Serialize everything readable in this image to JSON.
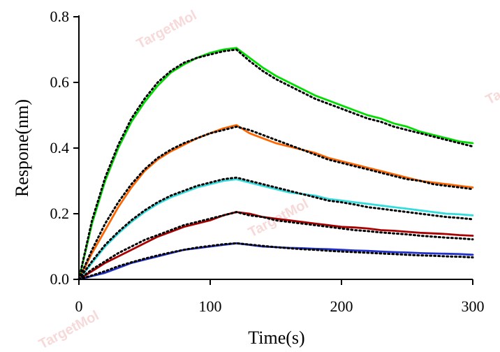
{
  "chart_data": {
    "type": "line",
    "title": "",
    "xlabel": "Time(s)",
    "ylabel": "Respone(nm)",
    "xlim": [
      0,
      300
    ],
    "ylim": [
      0,
      0.8
    ],
    "x_ticks": [
      0,
      100,
      200,
      300
    ],
    "x_tick_labels": [
      "0",
      "100",
      "200",
      "300"
    ],
    "y_ticks": [
      0,
      0.2,
      0.4,
      0.6,
      0.8
    ],
    "y_tick_labels": [
      "0.0",
      "0.2",
      "0.4",
      "0.6",
      "0.8"
    ],
    "grid": false,
    "legend": "none",
    "series": [
      {
        "color": "#00dd00",
        "x": [
          0,
          10,
          20,
          30,
          40,
          50,
          60,
          70,
          80,
          90,
          100,
          110,
          120,
          130,
          140,
          150,
          160,
          170,
          180,
          190,
          200,
          210,
          220,
          230,
          240,
          250,
          260,
          270,
          280,
          290,
          300
        ],
        "y": [
          0.0,
          0.17,
          0.3,
          0.4,
          0.48,
          0.54,
          0.59,
          0.63,
          0.655,
          0.675,
          0.69,
          0.7,
          0.705,
          0.675,
          0.645,
          0.62,
          0.6,
          0.58,
          0.56,
          0.545,
          0.53,
          0.515,
          0.5,
          0.49,
          0.475,
          0.465,
          0.45,
          0.44,
          0.43,
          0.42,
          0.415
        ]
      },
      {
        "color": "#ff6600",
        "x": [
          0,
          10,
          20,
          30,
          40,
          50,
          60,
          70,
          80,
          90,
          100,
          110,
          120,
          130,
          140,
          150,
          160,
          170,
          180,
          190,
          200,
          210,
          220,
          230,
          240,
          250,
          260,
          270,
          280,
          290,
          300
        ],
        "y": [
          0.0,
          0.08,
          0.15,
          0.22,
          0.28,
          0.33,
          0.365,
          0.39,
          0.41,
          0.43,
          0.445,
          0.46,
          0.47,
          0.445,
          0.43,
          0.415,
          0.405,
          0.395,
          0.385,
          0.37,
          0.36,
          0.35,
          0.34,
          0.33,
          0.32,
          0.31,
          0.3,
          0.295,
          0.29,
          0.285,
          0.28
        ]
      },
      {
        "color": "#33dddd",
        "x": [
          0,
          10,
          20,
          30,
          40,
          50,
          60,
          70,
          80,
          90,
          100,
          110,
          120,
          130,
          140,
          150,
          160,
          170,
          180,
          190,
          200,
          210,
          220,
          230,
          240,
          250,
          260,
          270,
          280,
          290,
          300
        ],
        "y": [
          0.0,
          0.05,
          0.1,
          0.14,
          0.175,
          0.205,
          0.23,
          0.25,
          0.265,
          0.28,
          0.29,
          0.3,
          0.305,
          0.295,
          0.285,
          0.275,
          0.265,
          0.26,
          0.255,
          0.245,
          0.24,
          0.235,
          0.23,
          0.225,
          0.22,
          0.215,
          0.21,
          0.205,
          0.2,
          0.198,
          0.195
        ]
      },
      {
        "color": "#aa0000",
        "x": [
          0,
          10,
          20,
          30,
          40,
          50,
          60,
          70,
          80,
          90,
          100,
          110,
          120,
          130,
          140,
          150,
          160,
          170,
          180,
          190,
          200,
          210,
          220,
          230,
          240,
          250,
          260,
          270,
          280,
          290,
          300
        ],
        "y": [
          0.0,
          0.025,
          0.05,
          0.07,
          0.09,
          0.11,
          0.13,
          0.145,
          0.16,
          0.17,
          0.18,
          0.195,
          0.205,
          0.2,
          0.19,
          0.185,
          0.18,
          0.175,
          0.17,
          0.165,
          0.16,
          0.158,
          0.155,
          0.15,
          0.148,
          0.145,
          0.142,
          0.14,
          0.138,
          0.135,
          0.133
        ]
      },
      {
        "color": "#2233cc",
        "x": [
          0,
          10,
          20,
          30,
          40,
          50,
          60,
          70,
          80,
          90,
          100,
          110,
          120,
          130,
          140,
          150,
          160,
          170,
          180,
          190,
          200,
          210,
          220,
          230,
          240,
          250,
          260,
          270,
          280,
          290,
          300
        ],
        "y": [
          0.0,
          0.01,
          0.02,
          0.035,
          0.05,
          0.06,
          0.07,
          0.08,
          0.09,
          0.095,
          0.1,
          0.105,
          0.11,
          0.105,
          0.1,
          0.098,
          0.096,
          0.095,
          0.093,
          0.092,
          0.09,
          0.088,
          0.087,
          0.085,
          0.083,
          0.082,
          0.08,
          0.079,
          0.078,
          0.077,
          0.075
        ]
      }
    ],
    "fits": [
      {
        "x": [
          0,
          10,
          20,
          30,
          40,
          50,
          60,
          70,
          80,
          90,
          100,
          110,
          120,
          130,
          140,
          150,
          160,
          170,
          180,
          190,
          200,
          210,
          220,
          230,
          240,
          250,
          260,
          270,
          280,
          290,
          300
        ],
        "y": [
          0.0,
          0.18,
          0.31,
          0.41,
          0.49,
          0.55,
          0.6,
          0.635,
          0.66,
          0.675,
          0.685,
          0.695,
          0.7,
          0.665,
          0.635,
          0.61,
          0.59,
          0.57,
          0.55,
          0.535,
          0.52,
          0.505,
          0.49,
          0.48,
          0.465,
          0.455,
          0.445,
          0.435,
          0.425,
          0.415,
          0.405
        ]
      },
      {
        "x": [
          0,
          10,
          20,
          30,
          40,
          50,
          60,
          70,
          80,
          90,
          100,
          110,
          120,
          130,
          140,
          150,
          160,
          170,
          180,
          190,
          200,
          210,
          220,
          230,
          240,
          250,
          260,
          270,
          280,
          290,
          300
        ],
        "y": [
          0.0,
          0.09,
          0.17,
          0.235,
          0.29,
          0.335,
          0.37,
          0.395,
          0.415,
          0.43,
          0.445,
          0.455,
          0.465,
          0.455,
          0.44,
          0.425,
          0.41,
          0.395,
          0.38,
          0.365,
          0.355,
          0.345,
          0.335,
          0.325,
          0.315,
          0.305,
          0.3,
          0.29,
          0.285,
          0.28,
          0.275
        ]
      },
      {
        "x": [
          0,
          10,
          20,
          30,
          40,
          50,
          60,
          70,
          80,
          90,
          100,
          110,
          120,
          130,
          140,
          150,
          160,
          170,
          180,
          190,
          200,
          210,
          220,
          230,
          240,
          250,
          260,
          270,
          280,
          290,
          300
        ],
        "y": [
          0.0,
          0.055,
          0.105,
          0.145,
          0.18,
          0.21,
          0.235,
          0.255,
          0.27,
          0.285,
          0.295,
          0.305,
          0.31,
          0.3,
          0.29,
          0.28,
          0.27,
          0.26,
          0.25,
          0.24,
          0.235,
          0.228,
          0.22,
          0.215,
          0.21,
          0.205,
          0.2,
          0.195,
          0.19,
          0.187,
          0.183
        ]
      },
      {
        "x": [
          0,
          10,
          20,
          30,
          40,
          50,
          60,
          70,
          80,
          90,
          100,
          110,
          120,
          130,
          140,
          150,
          160,
          170,
          180,
          190,
          200,
          210,
          220,
          230,
          240,
          250,
          260,
          270,
          280,
          290,
          300
        ],
        "y": [
          0.0,
          0.03,
          0.055,
          0.08,
          0.1,
          0.12,
          0.135,
          0.15,
          0.165,
          0.175,
          0.185,
          0.195,
          0.205,
          0.195,
          0.19,
          0.18,
          0.175,
          0.17,
          0.165,
          0.16,
          0.155,
          0.15,
          0.147,
          0.143,
          0.14,
          0.137,
          0.133,
          0.13,
          0.127,
          0.125,
          0.122
        ]
      },
      {
        "x": [
          0,
          10,
          20,
          30,
          40,
          50,
          60,
          70,
          80,
          90,
          100,
          110,
          120,
          130,
          140,
          150,
          160,
          170,
          180,
          190,
          200,
          210,
          220,
          230,
          240,
          250,
          260,
          270,
          280,
          290,
          300
        ],
        "y": [
          0.0,
          0.012,
          0.025,
          0.04,
          0.052,
          0.063,
          0.073,
          0.082,
          0.09,
          0.097,
          0.102,
          0.107,
          0.11,
          0.106,
          0.102,
          0.098,
          0.095,
          0.092,
          0.09,
          0.087,
          0.085,
          0.083,
          0.081,
          0.079,
          0.077,
          0.075,
          0.073,
          0.072,
          0.07,
          0.069,
          0.067
        ]
      }
    ]
  },
  "watermark": {
    "text": "TargetMol"
  }
}
